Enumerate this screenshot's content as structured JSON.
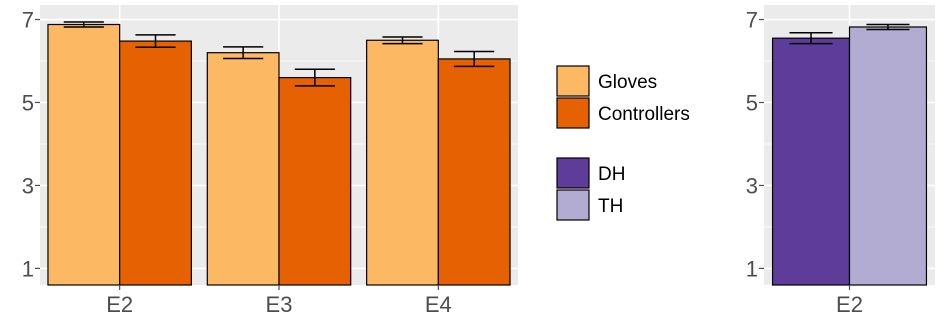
{
  "chart_data": [
    {
      "type": "bar",
      "categories": [
        "E2",
        "E3",
        "E4"
      ],
      "series": [
        {
          "name": "Gloves",
          "values": [
            6.88,
            6.2,
            6.5
          ],
          "errors": [
            0.06,
            0.14,
            0.08
          ],
          "color": "#fdb863"
        },
        {
          "name": "Controllers",
          "values": [
            6.48,
            5.6,
            6.05
          ],
          "errors": [
            0.15,
            0.2,
            0.18
          ],
          "color": "#e66101"
        }
      ],
      "ylim": [
        0.6,
        7.35
      ],
      "yticks": [
        1,
        3,
        5,
        7
      ],
      "grid": true,
      "legend": "right"
    },
    {
      "type": "bar",
      "categories": [
        "E2"
      ],
      "series": [
        {
          "name": "DH",
          "values": [
            6.55
          ],
          "errors": [
            0.13
          ],
          "color": "#5e3c99"
        },
        {
          "name": "TH",
          "values": [
            6.82
          ],
          "errors": [
            0.06
          ],
          "color": "#b2abd2"
        }
      ],
      "ylim": [
        0.6,
        7.35
      ],
      "yticks": [
        1,
        3,
        5,
        7
      ],
      "grid": true
    }
  ]
}
